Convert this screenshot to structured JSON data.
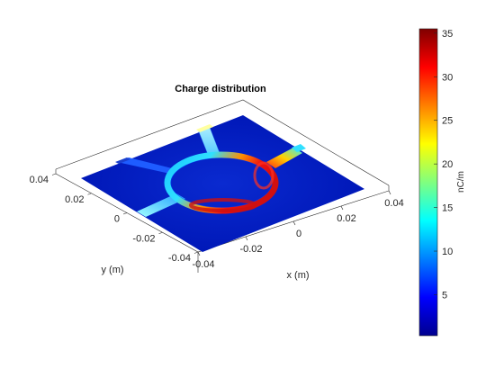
{
  "window": {
    "width": 560,
    "height": 420
  },
  "chart_data": {
    "type": "heatmap",
    "title": "Charge distribution",
    "xlabel": "x (m)",
    "ylabel": "y (m)",
    "x_ticks": [
      -0.04,
      -0.02,
      0,
      0.02,
      0.04
    ],
    "x_tick_labels": [
      "-0.04",
      "-0.02",
      "0",
      "0.02",
      "0.04"
    ],
    "y_ticks": [
      -0.04,
      -0.02,
      0,
      0.02,
      0.04
    ],
    "y_tick_labels": [
      "-0.04",
      "-0.02",
      "0",
      "0.02",
      "0.04"
    ],
    "xlim": [
      -0.04,
      0.04
    ],
    "ylim": [
      -0.04,
      0.04
    ],
    "colormap": "jet",
    "colorbar": {
      "label": "nC/m",
      "ticks": [
        5,
        10,
        15,
        20,
        25,
        30,
        35
      ],
      "tick_labels": [
        "5",
        "10",
        "15",
        "20",
        "25",
        "30",
        "35"
      ],
      "range": [
        0.3,
        35.5
      ]
    },
    "structure": {
      "description_elements": [
        "substrate",
        "ring",
        "feed-arm-left",
        "feed-arm-front",
        "feed-arm-right",
        "feed-arm-back"
      ]
    },
    "ring_charge_peak": 35,
    "substrate_charge": 1
  }
}
